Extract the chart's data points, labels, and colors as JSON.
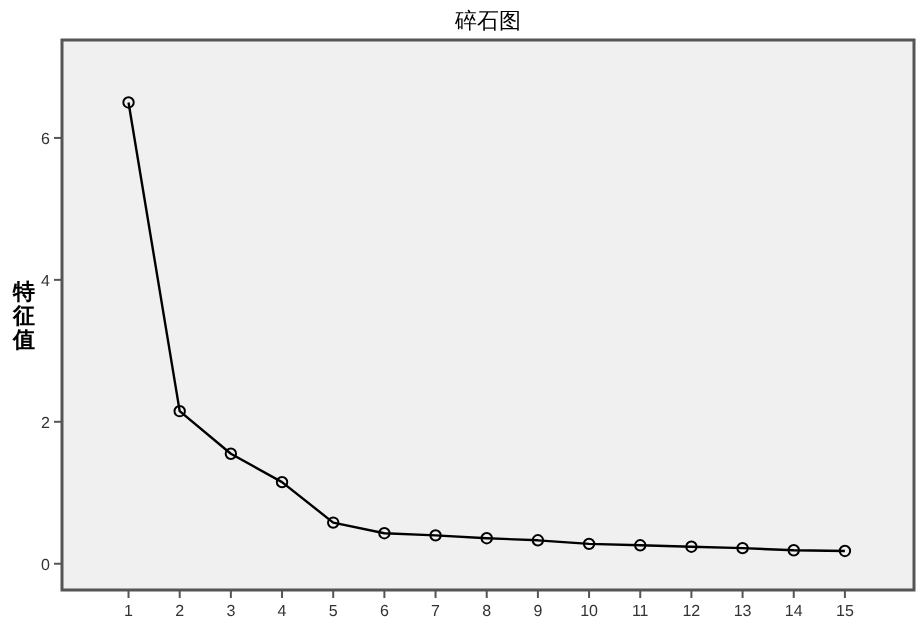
{
  "chart_data": {
    "type": "line",
    "title": "碎石图",
    "ylabel": "特征值",
    "x": [
      1,
      2,
      3,
      4,
      5,
      6,
      7,
      8,
      9,
      10,
      11,
      12,
      13,
      14,
      15
    ],
    "series": [
      {
        "color": "#000000",
        "values": [
          6.5,
          2.15,
          1.55,
          1.15,
          0.58,
          0.43,
          0.4,
          0.36,
          0.33,
          0.28,
          0.26,
          0.24,
          0.22,
          0.19,
          0.18
        ]
      }
    ],
    "xlim": [
      -0.3,
      16.35
    ],
    "ylim": [
      -0.37,
      7.38
    ],
    "xticks": [
      1,
      2,
      3,
      4,
      5,
      6,
      7,
      8,
      9,
      10,
      11,
      12,
      13,
      14,
      15
    ],
    "yticks": [
      0,
      2,
      4,
      6
    ],
    "marker": "circle",
    "line_style": "solid",
    "grid": false
  }
}
